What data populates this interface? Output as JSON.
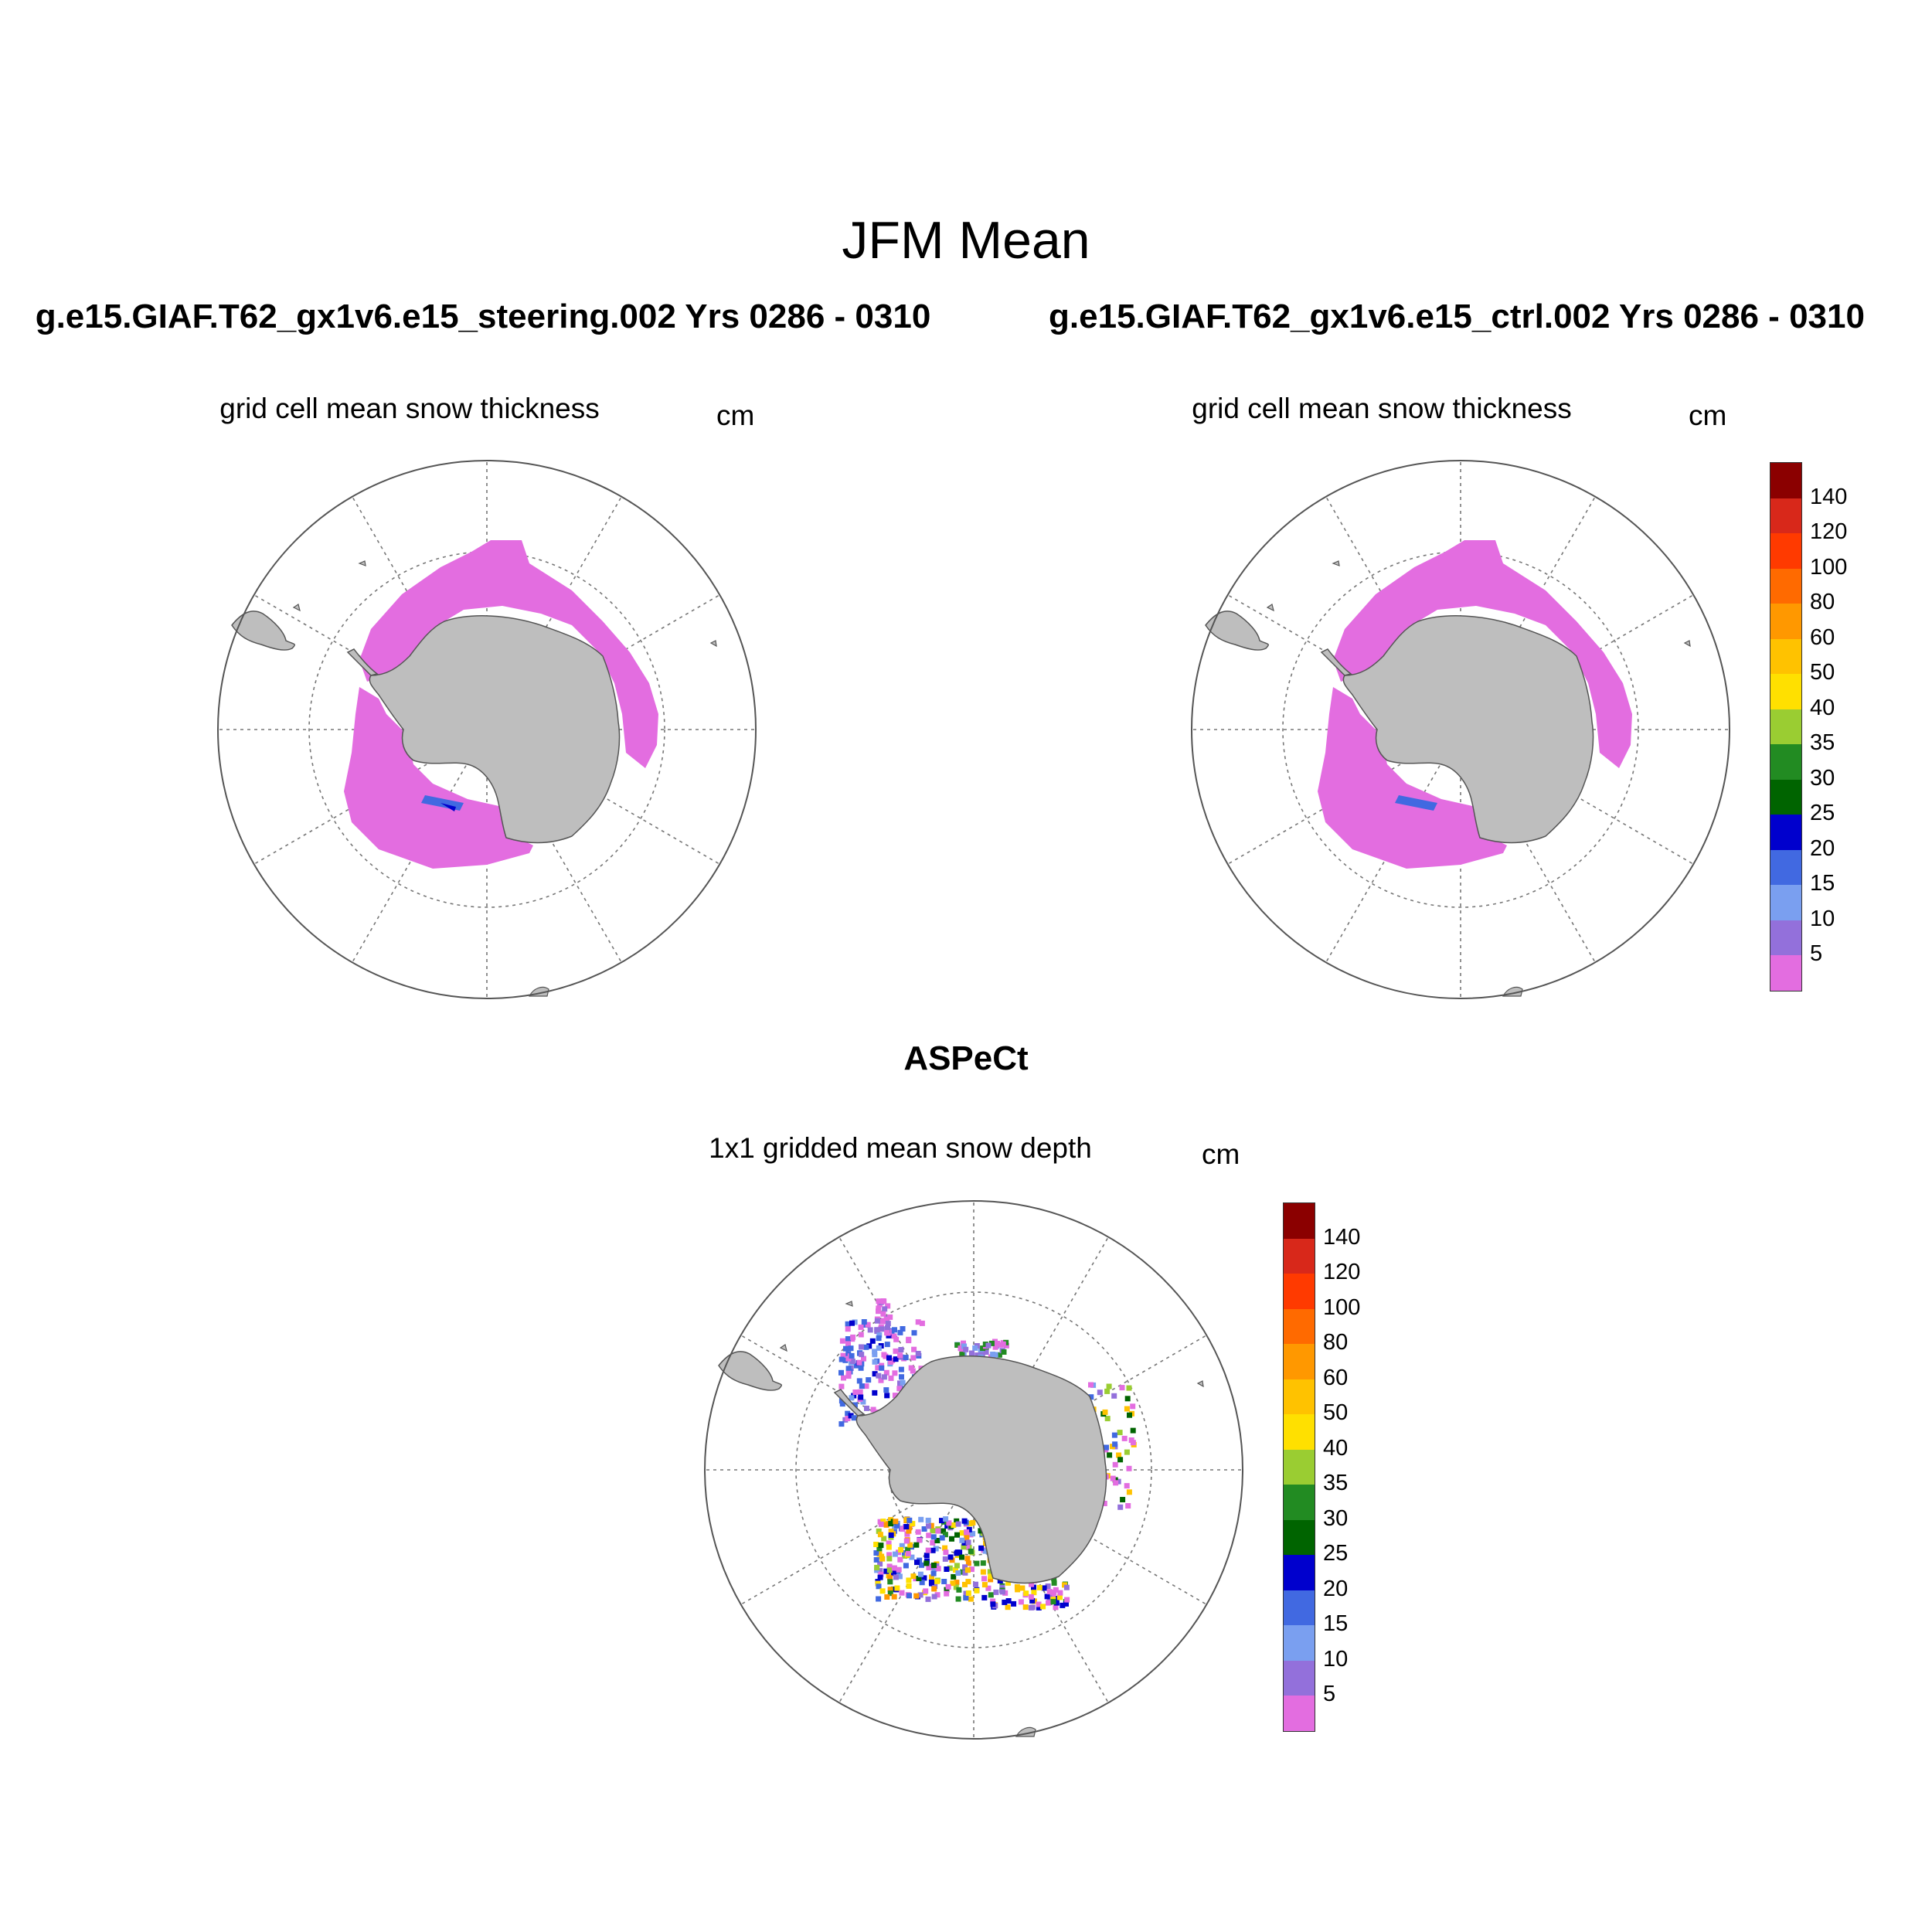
{
  "figure": {
    "title": "JFM Mean",
    "panels": [
      {
        "id": "steering",
        "run": "g.e15.GIAF.T62_gx1v6.e15_steering.002  Yrs 0286 - 0310",
        "subtitle": "grid cell mean snow thickness",
        "unit": "cm"
      },
      {
        "id": "ctrl",
        "run": "g.e15.GIAF.T62_gx1v6.e15_ctrl.002  Yrs 0286 - 0310",
        "subtitle": "grid cell mean snow thickness",
        "unit": "cm"
      },
      {
        "id": "obs",
        "run": "ASPeCt",
        "subtitle": "1x1 gridded mean snow depth",
        "unit": "cm"
      }
    ]
  },
  "colorbar": {
    "labels": [
      "140",
      "120",
      "100",
      "80",
      "60",
      "50",
      "40",
      "35",
      "30",
      "25",
      "20",
      "15",
      "10",
      "5"
    ],
    "colors": [
      "#8b0000",
      "#d8281a",
      "#ff3a00",
      "#ff6a00",
      "#ff9800",
      "#ffc200",
      "#ffe000",
      "#9acd32",
      "#228b22",
      "#006400",
      "#0000cd",
      "#4169e1",
      "#7a9ff0",
      "#9370db",
      "#e36de0"
    ]
  },
  "colors": {
    "land": "#bebebe",
    "ice_snow": "#e36de0",
    "grid": "#777777"
  }
}
